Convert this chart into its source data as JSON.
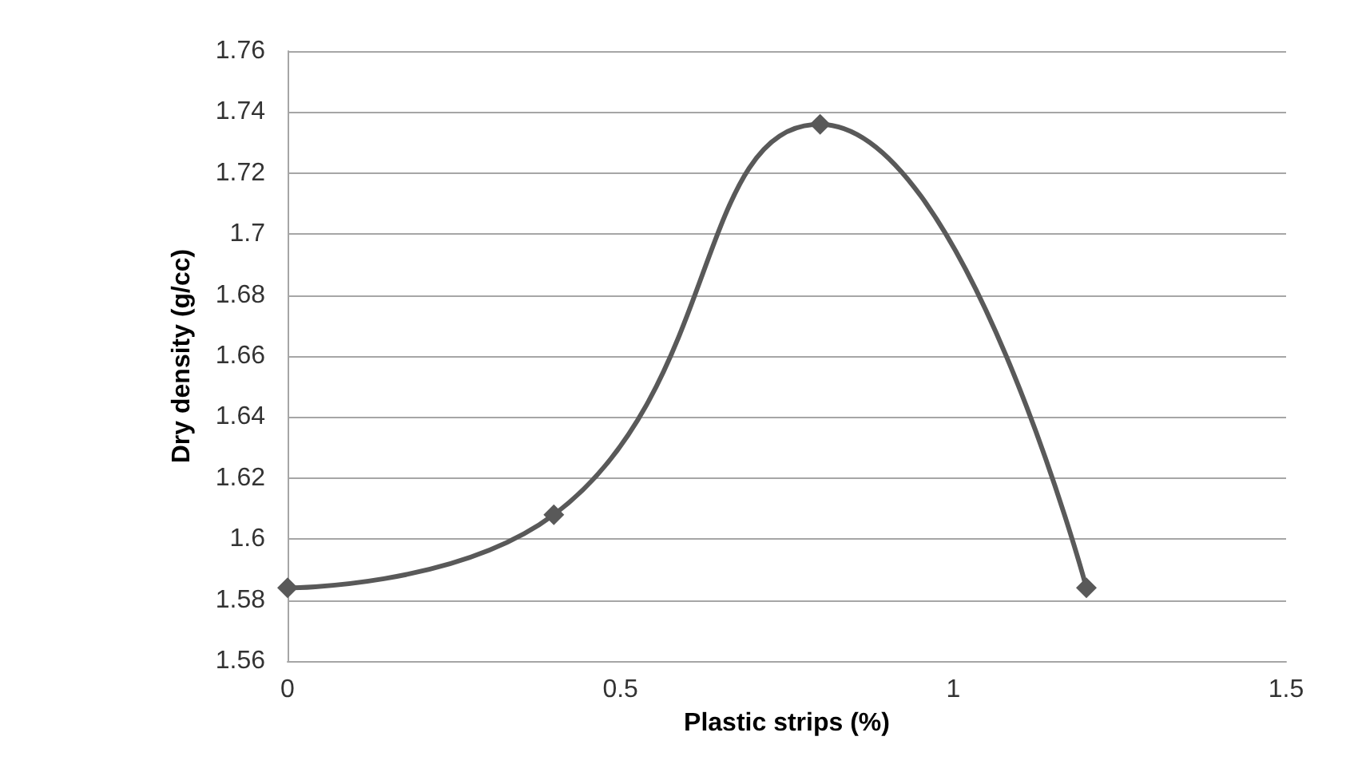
{
  "chart_data": {
    "type": "line",
    "xlabel": "Plastic strips (%)",
    "ylabel": "Dry density (g/cc)",
    "x": [
      0,
      0.4,
      0.8,
      1.2
    ],
    "series": [
      {
        "color": "#595959",
        "values": [
          1.584,
          1.608,
          1.736,
          1.584
        ]
      }
    ],
    "xlim": [
      0,
      1.5
    ],
    "xticks": [
      0,
      0.5,
      1,
      1.5
    ],
    "ylim": [
      1.56,
      1.76
    ],
    "yticks": [
      1.56,
      1.58,
      1.6,
      1.62,
      1.64,
      1.66,
      1.68,
      1.7,
      1.72,
      1.74,
      1.76
    ],
    "grid": "y",
    "marker": "diamond",
    "line_style": "solid"
  }
}
